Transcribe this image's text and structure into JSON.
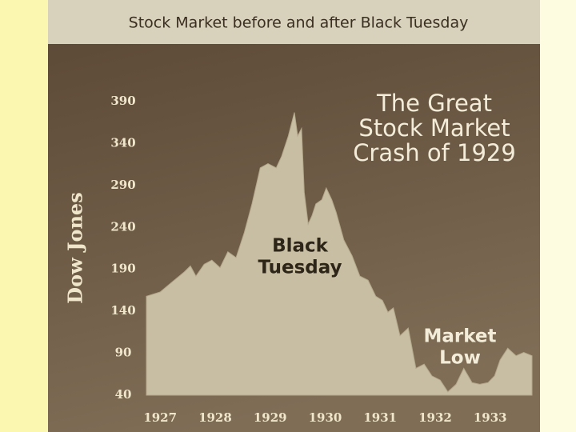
{
  "chart_data": {
    "type": "area",
    "title": "Stock Market before and after Black Tuesday",
    "y_label": "Dow Jones",
    "annotations": [
      {
        "lines": [
          "The Great",
          "Stock Market",
          "Crash of 1929"
        ]
      },
      {
        "lines": [
          "Black",
          "Tuesday"
        ]
      },
      {
        "lines": [
          "Market",
          "Low"
        ]
      }
    ],
    "color": "#c8bea3",
    "x": [
      1926.75,
      1927.0,
      1927.22,
      1927.44,
      1927.55,
      1927.65,
      1927.8,
      1927.94,
      1928.09,
      1928.23,
      1928.38,
      1928.53,
      1928.67,
      1928.82,
      1928.96,
      1929.11,
      1929.21,
      1929.33,
      1929.44,
      1929.5,
      1929.57,
      1929.62,
      1929.69,
      1929.76,
      1929.83,
      1929.94,
      1930.02,
      1930.12,
      1930.2,
      1930.34,
      1930.49,
      1930.63,
      1930.78,
      1930.92,
      1931.04,
      1931.14,
      1931.24,
      1931.36,
      1931.51,
      1931.65,
      1931.8,
      1931.94,
      1932.09,
      1932.23,
      1932.38,
      1932.52,
      1932.67,
      1932.81,
      1932.96,
      1933.08,
      1933.18,
      1933.32,
      1933.47,
      1933.61,
      1933.76
    ],
    "y": [
      158,
      163,
      175,
      187,
      194,
      182,
      196,
      201,
      192,
      211,
      204,
      234,
      268,
      311,
      316,
      311,
      325,
      349,
      377,
      349,
      358,
      282,
      244,
      254,
      268,
      273,
      287,
      273,
      258,
      225,
      206,
      182,
      177,
      158,
      153,
      139,
      144,
      111,
      120,
      72,
      77,
      63,
      58,
      44,
      53,
      72,
      55,
      53,
      55,
      63,
      82,
      96,
      87,
      91,
      87
    ],
    "xlim": [
      1926.75,
      1933.76
    ],
    "xticks": [
      1927,
      1928,
      1929,
      1930,
      1931,
      1932,
      1933
    ],
    "ylim": [
      40,
      390
    ],
    "yticks": [
      40,
      90,
      140,
      190,
      240,
      290,
      340,
      390
    ],
    "grid": false
  }
}
